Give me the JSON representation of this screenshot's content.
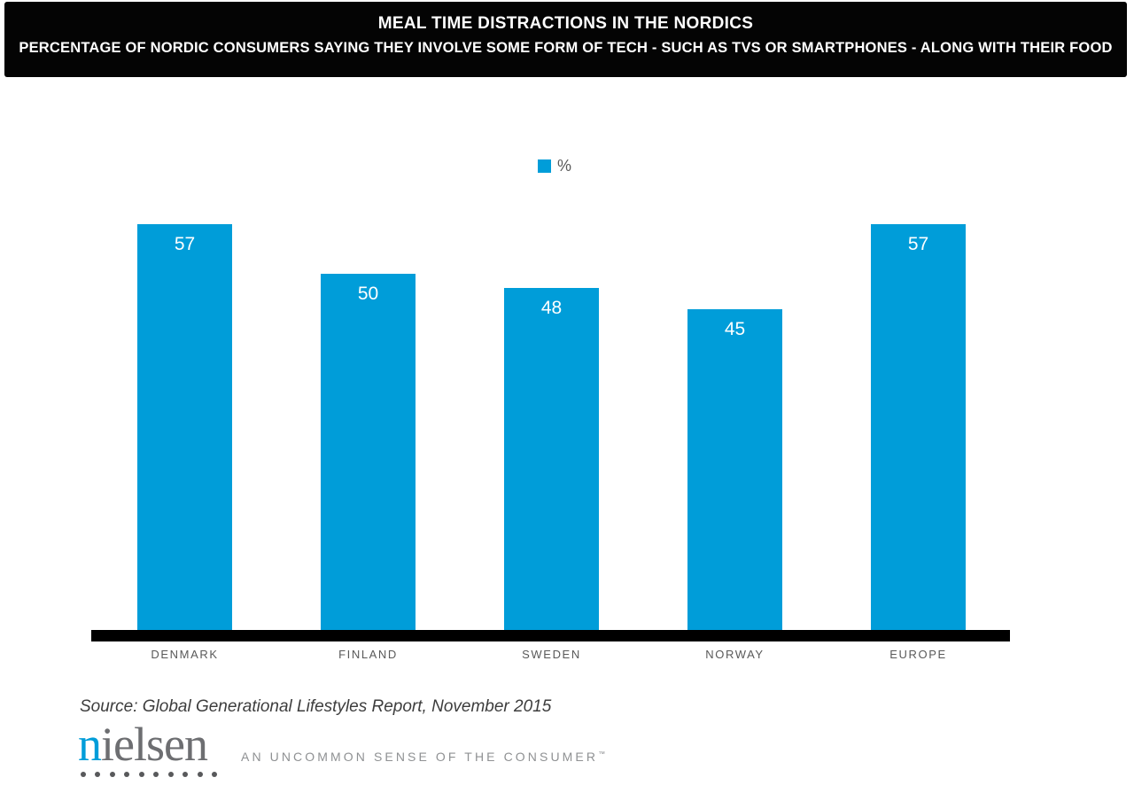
{
  "header": {
    "title": "MEAL TIME DISTRACTIONS IN THE NORDICS",
    "subtitle": "PERCENTAGE OF NORDIC CONSUMERS SAYING THEY INVOLVE SOME FORM OF TECH - SUCH AS TVS OR SMARTPHONES - ALONG WITH THEIR FOOD",
    "bg_color": "#000000",
    "text_color": "#ffffff"
  },
  "legend": {
    "label": "%",
    "swatch_color": "#009DD9"
  },
  "chart_data": {
    "type": "bar",
    "title": "MEAL TIME DISTRACTIONS IN THE NORDICS",
    "categories": [
      "DENMARK",
      "FINLAND",
      "SWEDEN",
      "NORWAY",
      "EUROPE"
    ],
    "values": [
      57,
      50,
      48,
      45,
      57
    ],
    "series": [
      {
        "name": "%",
        "values": [
          57,
          50,
          48,
          45,
          57
        ]
      }
    ],
    "xlabel": "",
    "ylabel": "",
    "ylim": [
      0,
      60
    ],
    "grid": false,
    "legend_position": "top-center",
    "bar_color": "#009DD9",
    "value_label_color": "#ffffff",
    "axis_color": "#000000",
    "category_label_color": "#595959"
  },
  "footer": {
    "source": "Source: Global Generational Lifestyles Report, November 2015",
    "logo_first_letter": "n",
    "logo_rest": "ielsen",
    "logo_accent_color": "#009DD9",
    "logo_text_color": "#6d6e71",
    "dots_count": 10,
    "tagline": "AN UNCOMMON SENSE OF THE CONSUMER",
    "tagline_tm": "™"
  }
}
